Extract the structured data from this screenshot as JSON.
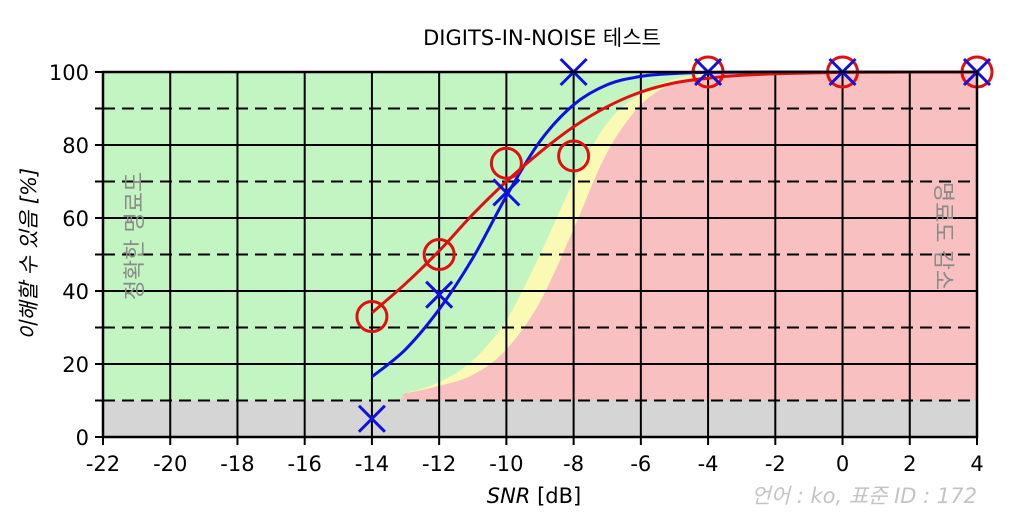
{
  "chart_data": {
    "type": "line",
    "title": "DIGITS-IN-NOISE 테스트",
    "xlabel_italic": "SNR",
    "xlabel_unit": "[dB]",
    "ylabel": "이해할 수 있음 [%]",
    "xlim": [
      -22,
      4
    ],
    "ylim": [
      0,
      100
    ],
    "x_ticks": [
      -22,
      -20,
      -18,
      -16,
      -14,
      -12,
      -10,
      -8,
      -6,
      -4,
      -2,
      0,
      2,
      4
    ],
    "y_ticks": [
      0,
      20,
      40,
      60,
      80,
      100
    ],
    "y_dashed_gridlines": [
      10,
      30,
      50,
      70,
      90
    ],
    "grid": true,
    "zone_labels": {
      "left": "정확한 명료도",
      "right": "명료도 감소"
    },
    "footer": "언어 : ko, 표준 ID : 172",
    "zones": {
      "gray_floor": 10,
      "green_boundary": [
        [
          -22,
          10
        ],
        [
          -14,
          10
        ],
        [
          -13,
          12
        ],
        [
          -12,
          15
        ],
        [
          -11,
          21
        ],
        [
          -10,
          32
        ],
        [
          -9,
          50
        ],
        [
          -8,
          70
        ],
        [
          -7,
          86
        ],
        [
          -6,
          94
        ],
        [
          -5,
          98
        ],
        [
          -4,
          99.5
        ],
        [
          -3,
          100
        ],
        [
          4,
          100
        ]
      ],
      "yellow_boundary": [
        [
          -22,
          10
        ],
        [
          -15,
          10
        ],
        [
          -14,
          10.5
        ],
        [
          -13,
          12
        ],
        [
          -12,
          14
        ],
        [
          -11,
          17
        ],
        [
          -10,
          24
        ],
        [
          -9,
          37
        ],
        [
          -8,
          57
        ],
        [
          -7,
          78
        ],
        [
          -6,
          91
        ],
        [
          -5,
          97
        ],
        [
          -4,
          99
        ],
        [
          -3,
          100
        ],
        [
          4,
          100
        ]
      ]
    },
    "series": [
      {
        "color": "#1010e0",
        "marker": "x",
        "points": [
          [
            -14,
            5
          ],
          [
            -12,
            39
          ],
          [
            -10,
            67
          ],
          [
            -8,
            100
          ],
          [
            -4,
            100
          ],
          [
            0,
            100
          ],
          [
            4,
            100
          ]
        ],
        "curve": [
          [
            -14,
            16.5
          ],
          [
            -13,
            24
          ],
          [
            -12,
            35
          ],
          [
            -11,
            49
          ],
          [
            -10,
            66
          ],
          [
            -9,
            81
          ],
          [
            -8,
            91
          ],
          [
            -7,
            96.5
          ],
          [
            -6,
            98.8
          ],
          [
            -5,
            99.6
          ],
          [
            -4,
            99.9
          ],
          [
            -2,
            100
          ],
          [
            0,
            100
          ],
          [
            2,
            100
          ],
          [
            4,
            100
          ]
        ]
      },
      {
        "color": "#e01010",
        "marker": "o",
        "points": [
          [
            -14,
            33
          ],
          [
            -12,
            50
          ],
          [
            -10,
            75
          ],
          [
            -8,
            77
          ],
          [
            -4,
            100
          ],
          [
            0,
            100
          ],
          [
            4,
            100
          ]
        ],
        "curve": [
          [
            -14,
            34
          ],
          [
            -13,
            42
          ],
          [
            -12,
            51
          ],
          [
            -11,
            61
          ],
          [
            -10,
            70
          ],
          [
            -9,
            78
          ],
          [
            -8,
            85
          ],
          [
            -7,
            90.5
          ],
          [
            -6,
            94.5
          ],
          [
            -5,
            97
          ],
          [
            -4,
            98.3
          ],
          [
            -3,
            99.1
          ],
          [
            -2,
            99.5
          ],
          [
            0,
            99.9
          ],
          [
            2,
            100
          ],
          [
            4,
            100
          ]
        ]
      }
    ]
  }
}
